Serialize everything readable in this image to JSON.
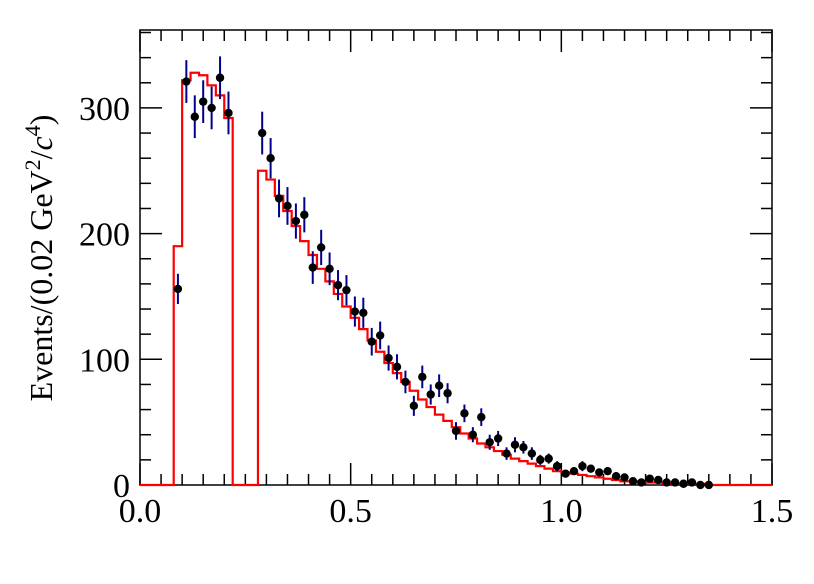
{
  "chart_data": {
    "type": "scatter",
    "title": "",
    "xlabel": "",
    "ylabel": {
      "prefix": "Events/(0.02 GeV",
      "sup1": "2",
      "mid": "/",
      "italic": "c",
      "sup2": "4",
      "suffix": ")"
    },
    "xlim": [
      0.0,
      1.5
    ],
    "ylim": [
      0,
      362
    ],
    "xticks": [
      0.0,
      0.5,
      1.0,
      1.5
    ],
    "xtick_labels": [
      "0.0",
      "0.5",
      "1.0",
      "1.5"
    ],
    "yticks": [
      0,
      100,
      200,
      300
    ],
    "ytick_labels": [
      "0",
      "100",
      "200",
      "300"
    ],
    "grid": false,
    "legend": "none",
    "colors": {
      "data_points": "#000000",
      "error_bars": "#00008b",
      "histogram": "#ff0000"
    },
    "series": [
      {
        "kind": "points_with_errors",
        "x": [
          0.09,
          0.11,
          0.13,
          0.15,
          0.17,
          0.19,
          0.21,
          0.29,
          0.31,
          0.33,
          0.35,
          0.37,
          0.39,
          0.41,
          0.43,
          0.45,
          0.47,
          0.49,
          0.51,
          0.53,
          0.55,
          0.57,
          0.59,
          0.61,
          0.63,
          0.65,
          0.67,
          0.69,
          0.71,
          0.73,
          0.75,
          0.77,
          0.79,
          0.81,
          0.83,
          0.85,
          0.87,
          0.89,
          0.91,
          0.93,
          0.95,
          0.97,
          0.99,
          1.01,
          1.03,
          1.05,
          1.07,
          1.09,
          1.11,
          1.13,
          1.15,
          1.17,
          1.19,
          1.21,
          1.23,
          1.25,
          1.27,
          1.29,
          1.31,
          1.33,
          1.35
        ],
        "y": [
          156,
          321,
          293,
          305,
          300,
          324,
          296,
          280,
          260,
          228,
          222,
          210,
          215,
          173,
          189,
          172,
          159,
          155,
          138,
          137,
          114,
          119,
          101,
          94,
          82,
          63,
          86,
          72,
          79,
          73,
          43,
          57,
          40,
          54,
          34,
          37,
          25,
          32,
          30,
          25,
          20,
          21,
          15,
          9,
          11,
          15,
          13,
          10,
          11,
          7,
          6,
          3,
          2,
          5,
          4,
          2,
          2,
          1,
          2,
          0,
          0
        ],
        "err": [
          12,
          17,
          17,
          17,
          17,
          17,
          17,
          17,
          16,
          15,
          15,
          14,
          14,
          13,
          14,
          13,
          12,
          12,
          12,
          12,
          11,
          11,
          10,
          10,
          9,
          8,
          9,
          8,
          9,
          8,
          7,
          7,
          6,
          7,
          6,
          6,
          5,
          6,
          5,
          5,
          4,
          4,
          4,
          3,
          3,
          4,
          3,
          3,
          3,
          3,
          2,
          2,
          1,
          2,
          2,
          1,
          1,
          1,
          1,
          0,
          0
        ]
      },
      {
        "kind": "histogram",
        "bin_width": 0.02,
        "edges": [
          0.0,
          0.02,
          0.04,
          0.06,
          0.08,
          0.1,
          0.12,
          0.14,
          0.16,
          0.18,
          0.2,
          0.22,
          0.24,
          0.26,
          0.28,
          0.3,
          0.32,
          0.34,
          0.36,
          0.38,
          0.4,
          0.42,
          0.44,
          0.46,
          0.48,
          0.5,
          0.52,
          0.54,
          0.56,
          0.58,
          0.6,
          0.62,
          0.64,
          0.66,
          0.68,
          0.7,
          0.72,
          0.74,
          0.76,
          0.78,
          0.8,
          0.82,
          0.84,
          0.86,
          0.88,
          0.9,
          0.92,
          0.94,
          0.96,
          0.98,
          1.0,
          1.02,
          1.04,
          1.06,
          1.08,
          1.1,
          1.12,
          1.14,
          1.16,
          1.18,
          1.2,
          1.22,
          1.24,
          1.26,
          1.28,
          1.3,
          1.32,
          1.34,
          1.36,
          1.38,
          1.4,
          1.42,
          1.44,
          1.46,
          1.48,
          1.5
        ],
        "values": [
          0,
          0,
          0,
          0,
          190,
          322,
          328,
          326,
          318,
          310,
          292,
          0,
          0,
          0,
          250,
          243,
          230,
          218,
          206,
          194,
          183,
          172,
          162,
          152,
          142,
          133,
          124,
          115,
          106,
          97,
          89,
          82,
          75,
          68,
          62,
          56,
          51,
          46,
          41,
          37,
          33,
          30,
          27,
          24,
          21,
          19,
          17,
          15,
          13,
          11,
          10,
          9,
          8,
          7,
          6,
          5,
          4,
          3,
          3,
          2,
          2,
          2,
          1,
          1,
          1,
          1,
          1,
          0,
          0,
          0,
          0,
          0,
          0,
          0,
          0
        ]
      }
    ]
  }
}
